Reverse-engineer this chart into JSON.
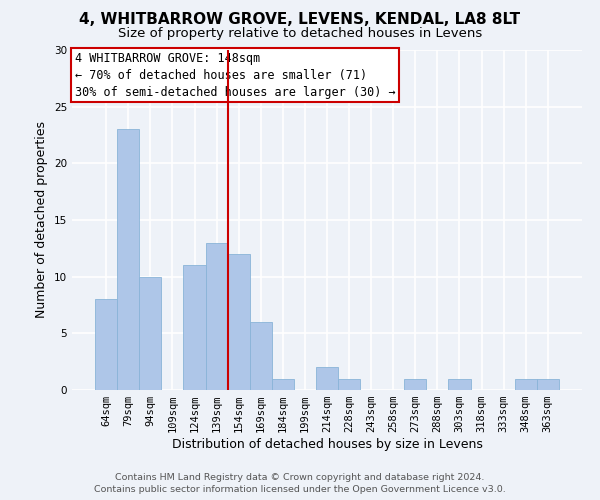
{
  "title": "4, WHITBARROW GROVE, LEVENS, KENDAL, LA8 8LT",
  "subtitle": "Size of property relative to detached houses in Levens",
  "xlabel": "Distribution of detached houses by size in Levens",
  "ylabel": "Number of detached properties",
  "categories": [
    "64sqm",
    "79sqm",
    "94sqm",
    "109sqm",
    "124sqm",
    "139sqm",
    "154sqm",
    "169sqm",
    "184sqm",
    "199sqm",
    "214sqm",
    "228sqm",
    "243sqm",
    "258sqm",
    "273sqm",
    "288sqm",
    "303sqm",
    "318sqm",
    "333sqm",
    "348sqm",
    "363sqm"
  ],
  "values": [
    8,
    23,
    10,
    0,
    11,
    13,
    12,
    6,
    1,
    0,
    2,
    1,
    0,
    0,
    1,
    0,
    1,
    0,
    0,
    1,
    1
  ],
  "bar_color": "#aec6e8",
  "bar_edge_color": "#8ab4d8",
  "bar_width": 1.0,
  "vline_x_idx": 5.5,
  "vline_color": "#cc0000",
  "ylim": [
    0,
    30
  ],
  "yticks": [
    0,
    5,
    10,
    15,
    20,
    25,
    30
  ],
  "annotation_title": "4 WHITBARROW GROVE: 148sqm",
  "annotation_line1": "← 70% of detached houses are smaller (71)",
  "annotation_line2": "30% of semi-detached houses are larger (30) →",
  "annotation_box_edgecolor": "#cc0000",
  "annotation_box_facecolor": "#ffffff",
  "footer1": "Contains HM Land Registry data © Crown copyright and database right 2024.",
  "footer2": "Contains public sector information licensed under the Open Government Licence v3.0.",
  "background_color": "#eef2f8",
  "grid_color": "#ffffff",
  "title_fontsize": 11,
  "subtitle_fontsize": 9.5,
  "axis_label_fontsize": 9,
  "tick_fontsize": 7.5,
  "annotation_fontsize": 8.5,
  "footer_fontsize": 6.8
}
